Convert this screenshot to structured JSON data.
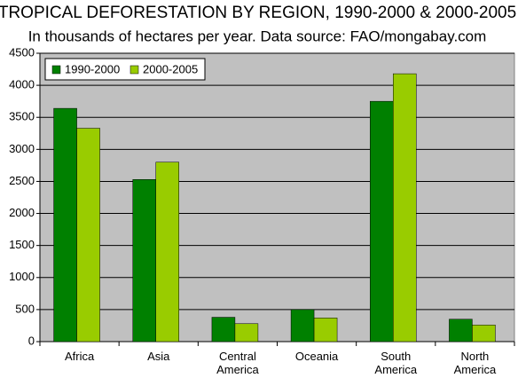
{
  "chart_data": {
    "type": "bar",
    "title": "TROPICAL DEFORESTATION BY REGION, 1990-2000 & 2000-2005",
    "subtitle": "In thousands of hectares per year.  Data source: FAO/mongabay.com",
    "categories": [
      "Africa",
      "Asia",
      "Central America",
      "Oceania",
      "South America",
      "North America"
    ],
    "series": [
      {
        "name": "1990-2000",
        "color": "#008000",
        "values": [
          3640,
          2530,
          380,
          500,
          3750,
          350
        ]
      },
      {
        "name": "2000-2005",
        "color": "#99cc00",
        "values": [
          3330,
          2800,
          280,
          370,
          4180,
          260
        ]
      }
    ],
    "ylim": [
      0,
      4500
    ],
    "yticks": [
      0,
      500,
      1000,
      1500,
      2000,
      2500,
      3000,
      3500,
      4000,
      4500
    ],
    "grid": true,
    "legend": "upper-left"
  }
}
